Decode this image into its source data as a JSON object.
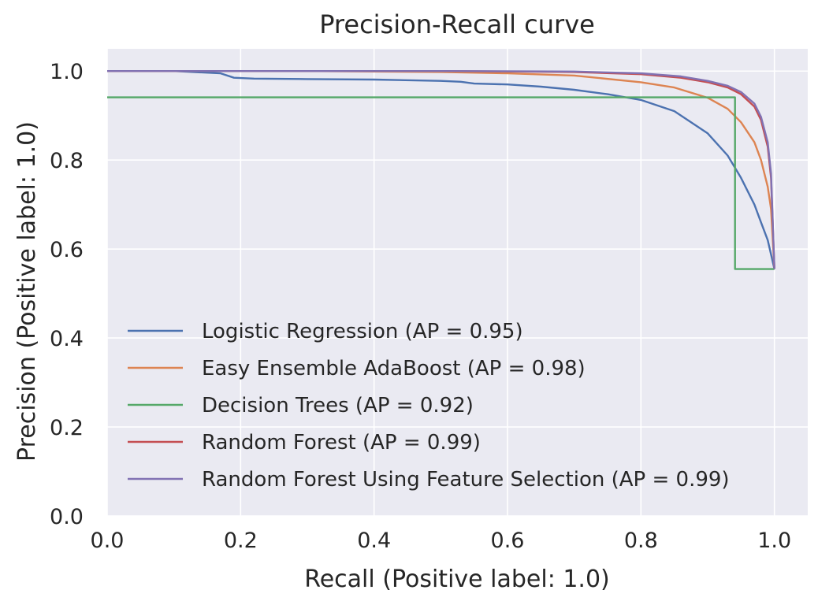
{
  "chart_data": {
    "type": "line",
    "title": "Precision-Recall curve",
    "xlabel": "Recall (Positive label: 1.0)",
    "ylabel": "Precision (Positive label: 1.0)",
    "xlim": [
      0.0,
      1.05
    ],
    "ylim": [
      0.0,
      1.05
    ],
    "xticks": [
      "0.0",
      "0.2",
      "0.4",
      "0.6",
      "0.8",
      "1.0"
    ],
    "yticks": [
      "0.0",
      "0.2",
      "0.4",
      "0.6",
      "0.8",
      "1.0"
    ],
    "grid": true,
    "legend_position": "lower-left",
    "background_color": "#eaeaf2",
    "series": [
      {
        "name": "Logistic Regression (AP = 0.95)",
        "color": "#4c72b0",
        "x": [
          0.0,
          0.1,
          0.17,
          0.19,
          0.22,
          0.3,
          0.4,
          0.5,
          0.53,
          0.55,
          0.6,
          0.65,
          0.7,
          0.75,
          0.8,
          0.85,
          0.9,
          0.93,
          0.95,
          0.97,
          0.98,
          0.99,
          1.0
        ],
        "y": [
          1.0,
          1.0,
          0.995,
          0.985,
          0.983,
          0.982,
          0.981,
          0.978,
          0.976,
          0.972,
          0.97,
          0.965,
          0.958,
          0.948,
          0.935,
          0.91,
          0.86,
          0.81,
          0.76,
          0.7,
          0.66,
          0.62,
          0.555
        ]
      },
      {
        "name": "Easy Ensemble AdaBoost (AP = 0.98)",
        "color": "#dd8452",
        "x": [
          0.0,
          0.3,
          0.5,
          0.6,
          0.7,
          0.8,
          0.85,
          0.9,
          0.93,
          0.95,
          0.97,
          0.98,
          0.99,
          0.995,
          1.0
        ],
        "y": [
          1.0,
          1.0,
          0.998,
          0.995,
          0.99,
          0.975,
          0.963,
          0.94,
          0.915,
          0.885,
          0.84,
          0.8,
          0.74,
          0.69,
          0.555
        ]
      },
      {
        "name": "Decision Trees (AP = 0.92)",
        "color": "#55a868",
        "x": [
          0.0,
          0.941,
          0.941,
          1.0,
          1.0
        ],
        "y": [
          0.941,
          0.941,
          0.555,
          0.555,
          0.555
        ]
      },
      {
        "name": "Random Forest (AP = 0.99)",
        "color": "#c44e52",
        "x": [
          0.0,
          0.5,
          0.7,
          0.8,
          0.86,
          0.9,
          0.93,
          0.95,
          0.97,
          0.98,
          0.99,
          0.995,
          1.0
        ],
        "y": [
          1.0,
          1.0,
          0.998,
          0.993,
          0.985,
          0.975,
          0.963,
          0.948,
          0.92,
          0.89,
          0.83,
          0.76,
          0.555
        ]
      },
      {
        "name": "Random Forest Using Feature Selection (AP = 0.99)",
        "color": "#8172b3",
        "x": [
          0.0,
          0.5,
          0.7,
          0.8,
          0.86,
          0.9,
          0.93,
          0.95,
          0.97,
          0.98,
          0.99,
          0.995,
          1.0
        ],
        "y": [
          1.0,
          1.0,
          0.999,
          0.995,
          0.988,
          0.978,
          0.967,
          0.953,
          0.927,
          0.897,
          0.84,
          0.77,
          0.555
        ]
      }
    ]
  }
}
